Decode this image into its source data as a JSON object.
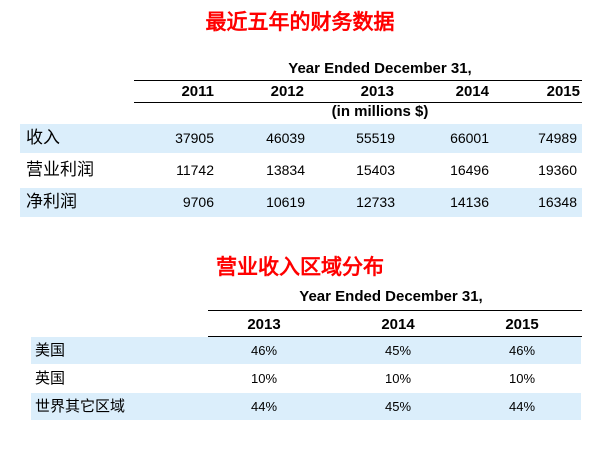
{
  "financials": {
    "title": "最近五年的财务数据",
    "period_header": "Year Ended December 31,",
    "unit_note": "(in millions $)",
    "years": [
      "2011",
      "2012",
      "2013",
      "2014",
      "2015"
    ],
    "rows": [
      {
        "label": "收入",
        "values": [
          "37905",
          "46039",
          "55519",
          "66001",
          "74989"
        ]
      },
      {
        "label": "营业利润",
        "values": [
          "11742",
          "13834",
          "15403",
          "16496",
          "19360"
        ]
      },
      {
        "label": "净利润",
        "values": [
          "9706",
          "10619",
          "12733",
          "14136",
          "16348"
        ]
      }
    ]
  },
  "regions": {
    "title": "营业收入区域分布",
    "period_header": "Year Ended December 31,",
    "years": [
      "2013",
      "2014",
      "2015"
    ],
    "rows": [
      {
        "label": "美国",
        "values": [
          "46%",
          "45%",
          "46%"
        ]
      },
      {
        "label": "英国",
        "values": [
          "10%",
          "10%",
          "10%"
        ]
      },
      {
        "label": "世界其它区域",
        "values": [
          "44%",
          "45%",
          "44%"
        ]
      }
    ]
  }
}
